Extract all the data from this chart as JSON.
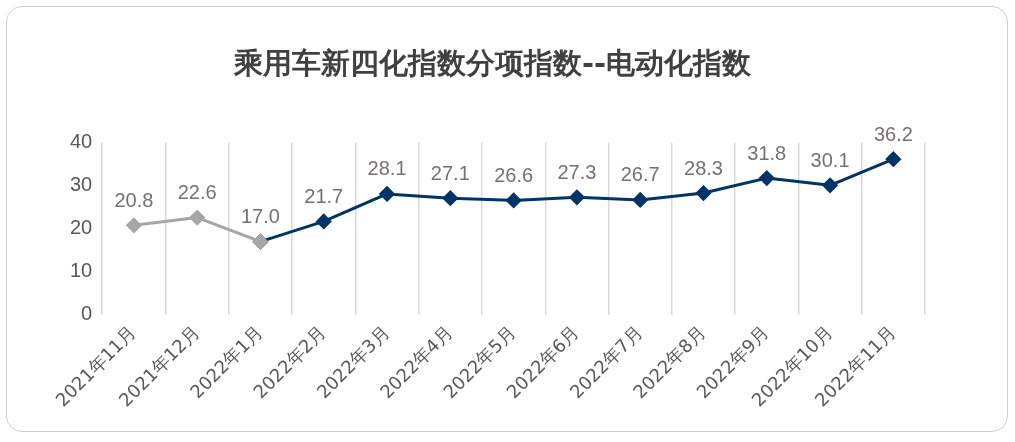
{
  "chart_data": {
    "type": "line",
    "title": "乘用车新四化指数分项指数--电动化指数",
    "categories": [
      "2021年11月",
      "2021年12月",
      "2022年1月",
      "2022年2月",
      "2022年3月",
      "2022年4月",
      "2022年5月",
      "2022年6月",
      "2022年7月",
      "2022年8月",
      "2022年9月",
      "2022年10月",
      "2022年11月"
    ],
    "series": [
      {
        "color": "#a6a6a6",
        "values": [
          20.8,
          22.6,
          17.0,
          null,
          null,
          null,
          null,
          null,
          null,
          null,
          null,
          null,
          null
        ],
        "value_labels": [
          "20.8",
          "22.6",
          null,
          null,
          null,
          null,
          null,
          null,
          null,
          null,
          null,
          null,
          null
        ]
      },
      {
        "color": "#003366",
        "values": [
          null,
          null,
          17.0,
          21.7,
          28.1,
          27.1,
          26.6,
          27.3,
          26.7,
          28.3,
          31.8,
          30.1,
          36.2
        ],
        "value_labels": [
          null,
          null,
          "17.0",
          "21.7",
          "28.1",
          "27.1",
          "26.6",
          "27.3",
          "26.7",
          "28.3",
          "31.8",
          "30.1",
          "36.2"
        ]
      }
    ],
    "ylim": [
      0,
      40
    ],
    "yticks": [
      0,
      10,
      20,
      30,
      40
    ],
    "grid": "x",
    "legend": false,
    "marker": "diamond",
    "line_style": "solid"
  }
}
